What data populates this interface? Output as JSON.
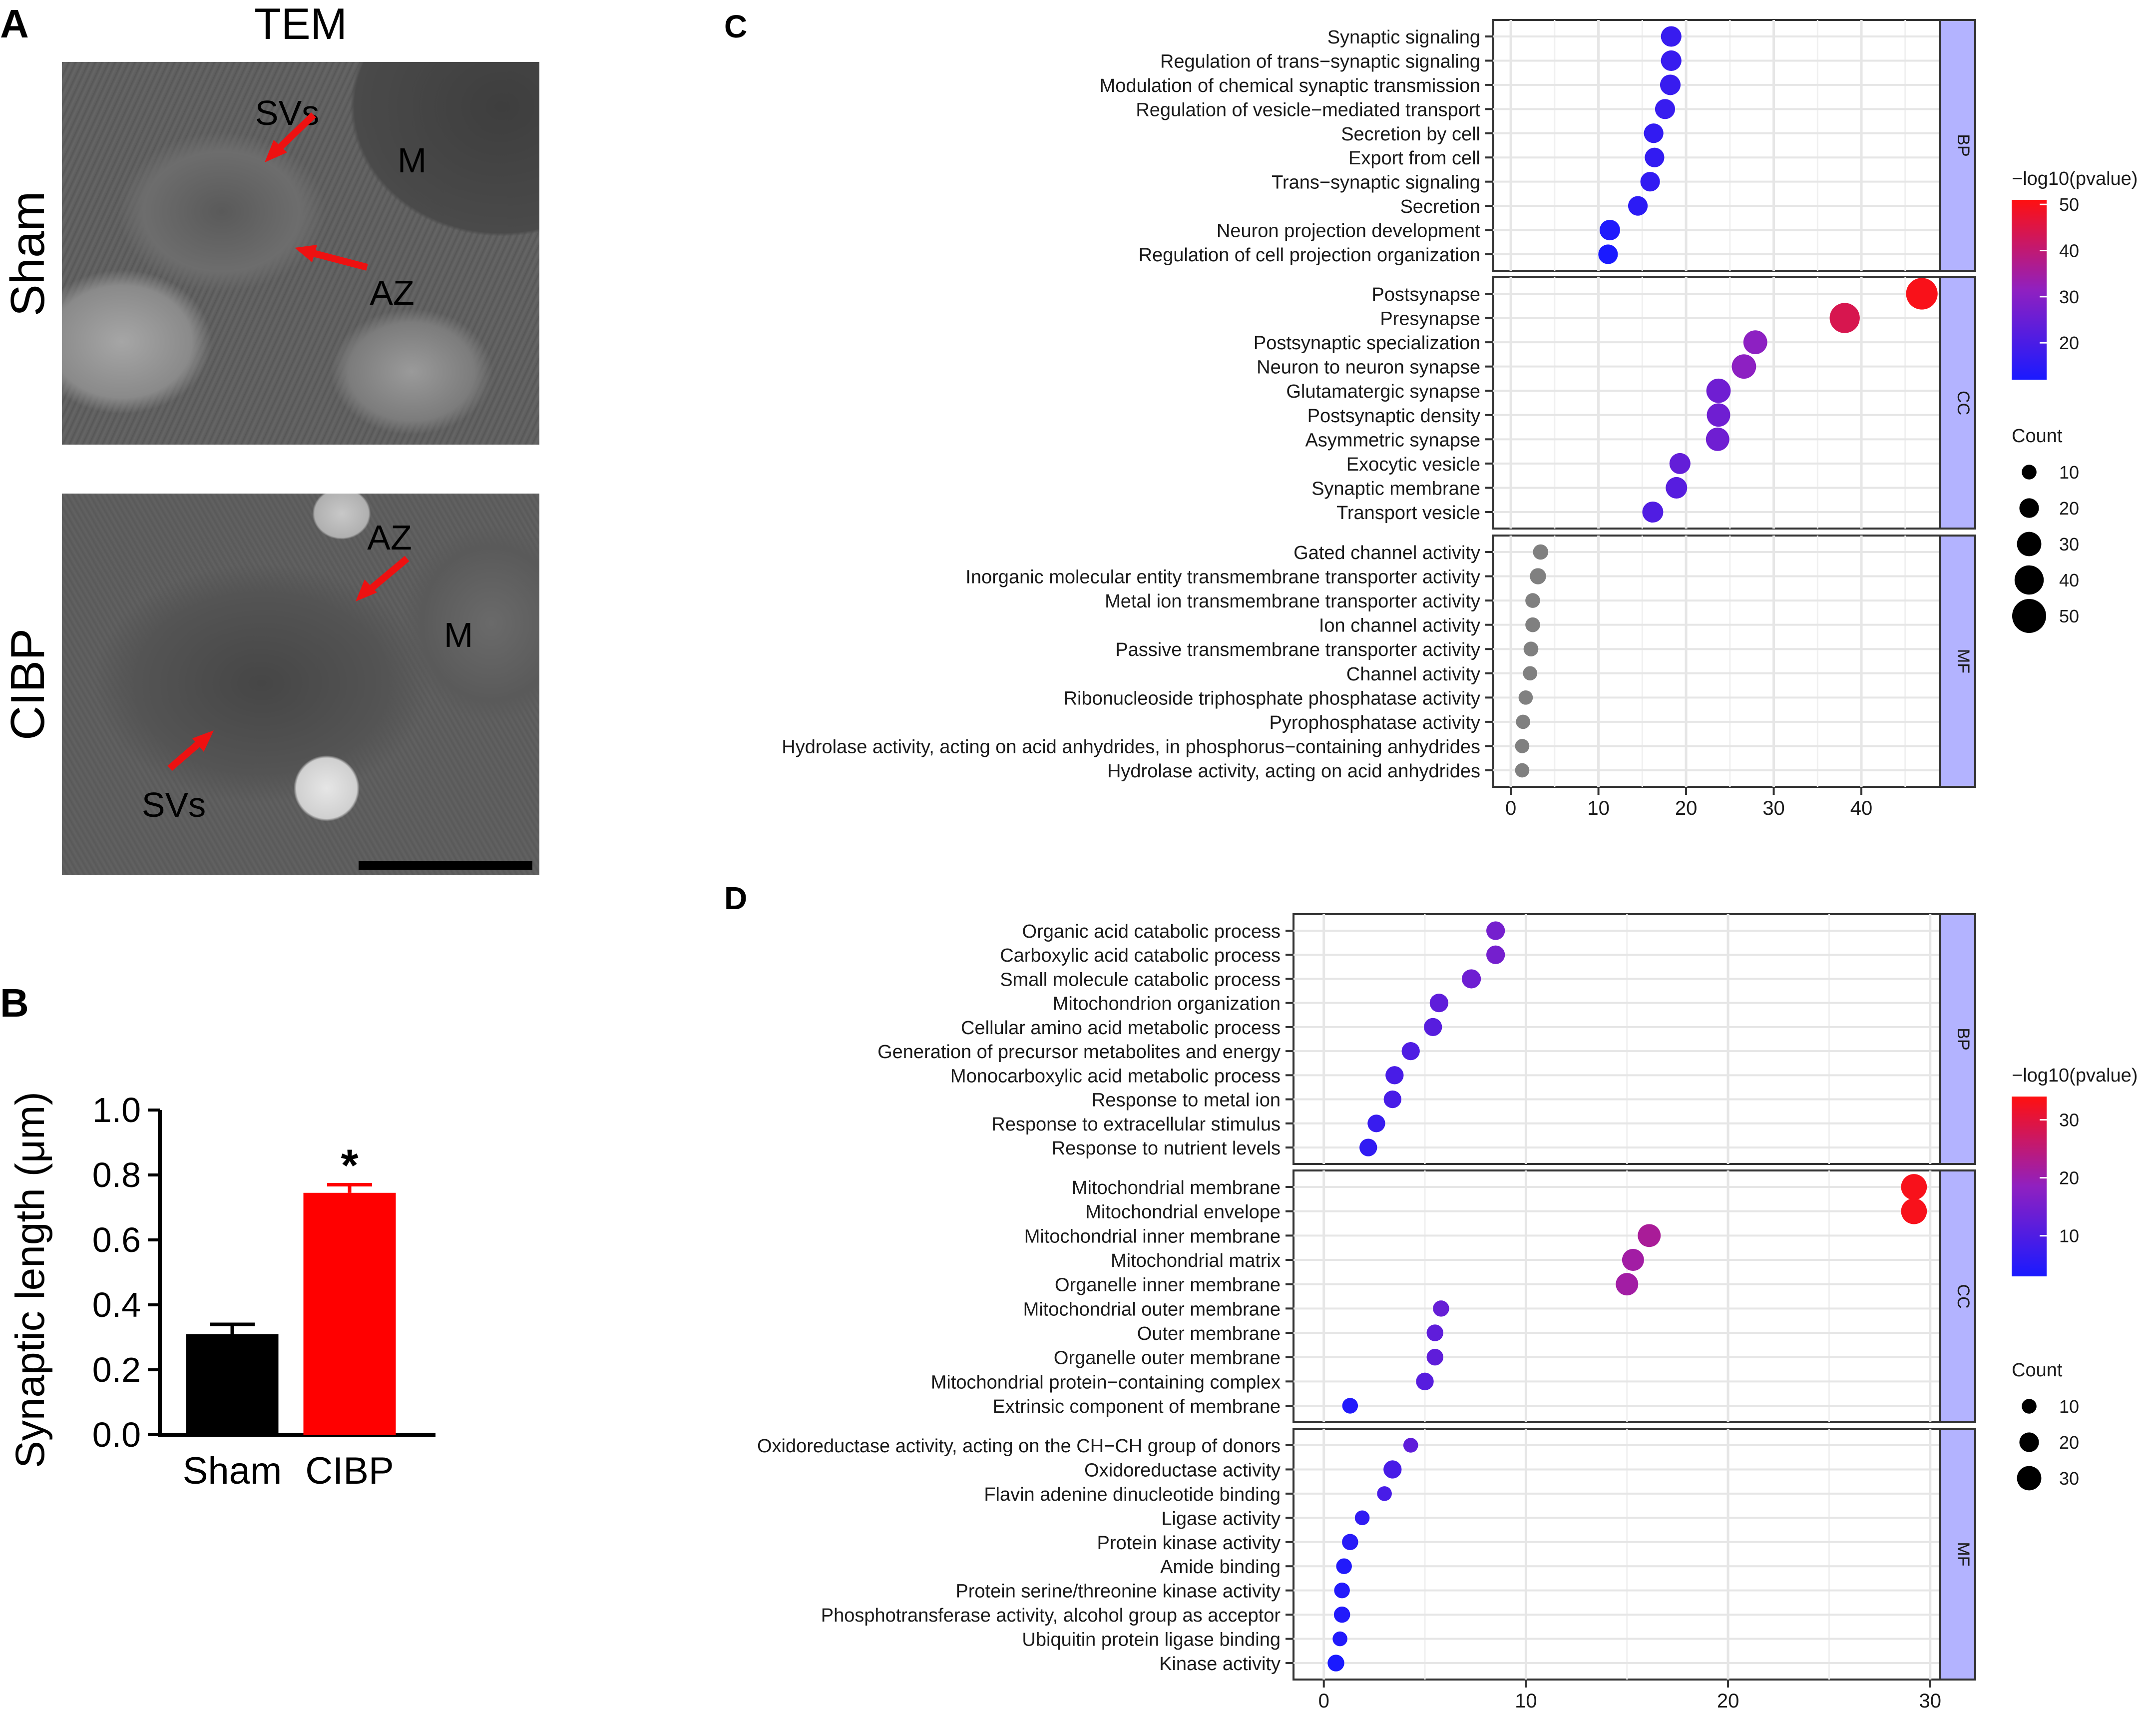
{
  "panel_a": {
    "letter": "A",
    "title": "TEM",
    "rows": [
      {
        "label": "Sham",
        "annotations": {
          "svs": "SVs",
          "az": "AZ",
          "m": "M"
        }
      },
      {
        "label": "CIBP",
        "annotations": {
          "svs": "SVs",
          "az": "AZ",
          "m": "M"
        }
      }
    ],
    "colors": {
      "arrow": "#ee1111",
      "scale_bar": "#000000"
    }
  },
  "panel_b": {
    "letter": "B",
    "significance": "*"
  },
  "panel_c": {
    "letter": "C"
  },
  "panel_d": {
    "letter": "D"
  },
  "chart_data": [
    {
      "id": "synaptic_length",
      "type": "bar",
      "categories": [
        "Sham",
        "CIBP"
      ],
      "values": [
        0.31,
        0.745
      ],
      "errors": [
        0.03,
        0.025
      ],
      "colors": [
        "#000000",
        "#ff0000"
      ],
      "ylabel": "Synaptic length (μm)",
      "ylim": [
        0,
        1.0
      ],
      "yticks": [
        0.0,
        0.2,
        0.4,
        0.6,
        0.8,
        1.0
      ],
      "ytick_labels": [
        "0.0",
        "0.2",
        "0.4",
        "0.6",
        "0.8",
        "1.0"
      ],
      "annotation": "*"
    },
    {
      "id": "go_c",
      "type": "scatter",
      "xlim": [
        -2,
        49
      ],
      "xticks": [
        0,
        10,
        20,
        30,
        40
      ],
      "color_legend": {
        "title": "−log10(pvalue)",
        "min": 12,
        "max": 51,
        "ticks": [
          20,
          30,
          40,
          50
        ]
      },
      "size_legend": {
        "title": "Count",
        "ticks": [
          10,
          20,
          30,
          40,
          50
        ]
      },
      "facets": [
        {
          "name": "BP",
          "terms": [
            {
              "label": "Synaptic signaling",
              "x": 18.3,
              "p": 17,
              "count": 22
            },
            {
              "label": "Regulation of trans−synaptic signaling",
              "x": 18.3,
              "p": 17,
              "count": 22
            },
            {
              "label": "Modulation of chemical synaptic transmission",
              "x": 18.2,
              "p": 17,
              "count": 22
            },
            {
              "label": "Regulation of vesicle−mediated transport",
              "x": 17.6,
              "p": 17,
              "count": 21
            },
            {
              "label": "Secretion by cell",
              "x": 16.3,
              "p": 16,
              "count": 20
            },
            {
              "label": "Export from cell",
              "x": 16.4,
              "p": 16,
              "count": 20
            },
            {
              "label": "Trans−synaptic signaling",
              "x": 15.9,
              "p": 16,
              "count": 20
            },
            {
              "label": "Secretion",
              "x": 14.5,
              "p": 15,
              "count": 20
            },
            {
              "label": "Neuron projection development",
              "x": 11.3,
              "p": 13,
              "count": 22
            },
            {
              "label": "Regulation of cell projection organization",
              "x": 11.1,
              "p": 12,
              "count": 20
            }
          ]
        },
        {
          "name": "CC",
          "terms": [
            {
              "label": "Postsynapse",
              "x": 46.9,
              "p": 50,
              "count": 45
            },
            {
              "label": "Presynapse",
              "x": 38.1,
              "p": 44,
              "count": 42
            },
            {
              "label": "Postsynaptic specialization",
              "x": 27.9,
              "p": 31,
              "count": 29
            },
            {
              "label": "Neuron to neuron synapse",
              "x": 26.6,
              "p": 31,
              "count": 30
            },
            {
              "label": "Glutamatergic synapse",
              "x": 23.7,
              "p": 26,
              "count": 30
            },
            {
              "label": "Postsynaptic density",
              "x": 23.7,
              "p": 26,
              "count": 28
            },
            {
              "label": "Asymmetric synapse",
              "x": 23.6,
              "p": 26,
              "count": 28
            },
            {
              "label": "Exocytic vesicle",
              "x": 19.3,
              "p": 24,
              "count": 23
            },
            {
              "label": "Synaptic membrane",
              "x": 18.9,
              "p": 22,
              "count": 24
            },
            {
              "label": "Transport vesicle",
              "x": 16.2,
              "p": 21,
              "count": 23
            }
          ]
        },
        {
          "name": "MF",
          "terms": [
            {
              "label": "Gated channel activity",
              "x": 3.4,
              "p": null,
              "count": 11
            },
            {
              "label": "Inorganic molecular entity transmembrane transporter activity",
              "x": 3.1,
              "p": null,
              "count": 13
            },
            {
              "label": "Metal ion transmembrane transporter activity",
              "x": 2.5,
              "p": null,
              "count": 10
            },
            {
              "label": "Ion channel activity",
              "x": 2.5,
              "p": null,
              "count": 10
            },
            {
              "label": "Passive transmembrane transporter activity",
              "x": 2.3,
              "p": null,
              "count": 10
            },
            {
              "label": "Channel activity",
              "x": 2.2,
              "p": null,
              "count": 9
            },
            {
              "label": "Ribonucleoside triphosphate phosphatase activity",
              "x": 1.7,
              "p": null,
              "count": 9
            },
            {
              "label": "Pyrophosphatase activity",
              "x": 1.4,
              "p": null,
              "count": 9
            },
            {
              "label": "Hydrolase activity, acting on acid anhydrides, in phosphorus−containing anhydrides",
              "x": 1.3,
              "p": null,
              "count": 9
            },
            {
              "label": "Hydrolase activity, acting on acid anhydrides",
              "x": 1.3,
              "p": null,
              "count": 9
            }
          ]
        }
      ]
    },
    {
      "id": "go_d",
      "type": "scatter",
      "xlim": [
        -1.5,
        30.5
      ],
      "xticks": [
        0,
        10,
        20,
        30
      ],
      "color_legend": {
        "title": "−log10(pvalue)",
        "min": 3,
        "max": 34,
        "ticks": [
          10,
          20,
          30
        ]
      },
      "size_legend": {
        "title": "Count",
        "ticks": [
          10,
          20,
          30
        ]
      },
      "facets": [
        {
          "name": "BP",
          "terms": [
            {
              "label": "Organic acid catabolic process",
              "x": 8.5,
              "p": 15,
              "count": 18
            },
            {
              "label": "Carboxylic acid catabolic process",
              "x": 8.5,
              "p": 15,
              "count": 18
            },
            {
              "label": "Small molecule catabolic process",
              "x": 7.3,
              "p": 14,
              "count": 19
            },
            {
              "label": "Mitochondrion organization",
              "x": 5.7,
              "p": 12,
              "count": 18
            },
            {
              "label": "Cellular amino acid metabolic process",
              "x": 5.4,
              "p": 11,
              "count": 17
            },
            {
              "label": "Generation of precursor metabolites and energy",
              "x": 4.3,
              "p": 10,
              "count": 17
            },
            {
              "label": "Monocarboxylic acid metabolic process",
              "x": 3.5,
              "p": 9,
              "count": 17
            },
            {
              "label": "Response to metal ion",
              "x": 3.4,
              "p": 9,
              "count": 16
            },
            {
              "label": "Response to extracellular stimulus",
              "x": 2.6,
              "p": 7,
              "count": 16
            },
            {
              "label": "Response to nutrient levels",
              "x": 2.2,
              "p": 6,
              "count": 16
            }
          ]
        },
        {
          "name": "CC",
          "terms": [
            {
              "label": "Mitochondrial membrane",
              "x": 29.2,
              "p": 33,
              "count": 33
            },
            {
              "label": "Mitochondrial envelope",
              "x": 29.2,
              "p": 33,
              "count": 33
            },
            {
              "label": "Mitochondrial inner membrane",
              "x": 16.1,
              "p": 22,
              "count": 27
            },
            {
              "label": "Mitochondrial matrix",
              "x": 15.3,
              "p": 21,
              "count": 25
            },
            {
              "label": "Organelle inner membrane",
              "x": 15.0,
              "p": 21,
              "count": 26
            },
            {
              "label": "Mitochondrial outer membrane",
              "x": 5.8,
              "p": 13,
              "count": 13
            },
            {
              "label": "Outer membrane",
              "x": 5.5,
              "p": 12,
              "count": 14
            },
            {
              "label": "Organelle outer membrane",
              "x": 5.5,
              "p": 12,
              "count": 14
            },
            {
              "label": "Mitochondrial protein−containing complex",
              "x": 5.0,
              "p": 11,
              "count": 16
            },
            {
              "label": "Extrinsic component of membrane",
              "x": 1.3,
              "p": 4,
              "count": 12
            }
          ]
        },
        {
          "name": "MF",
          "terms": [
            {
              "label": "Oxidoreductase activity, acting on the CH−CH group of donors",
              "x": 4.3,
              "p": 12,
              "count": 10
            },
            {
              "label": "Oxidoreductase activity",
              "x": 3.4,
              "p": 9,
              "count": 17
            },
            {
              "label": "Flavin adenine dinucleotide binding",
              "x": 3.0,
              "p": 9,
              "count": 10
            },
            {
              "label": "Ligase activity",
              "x": 1.9,
              "p": 6,
              "count": 10
            },
            {
              "label": "Protein kinase activity",
              "x": 1.3,
              "p": 5,
              "count": 13
            },
            {
              "label": "Amide binding",
              "x": 1.0,
              "p": 4,
              "count": 12
            },
            {
              "label": "Protein serine/threonine kinase activity",
              "x": 0.9,
              "p": 4,
              "count": 12
            },
            {
              "label": "Phosphotransferase activity, alcohol group as acceptor",
              "x": 0.9,
              "p": 4,
              "count": 13
            },
            {
              "label": "Ubiquitin protein ligase binding",
              "x": 0.8,
              "p": 4,
              "count": 10
            },
            {
              "label": "Kinase activity",
              "x": 0.6,
              "p": 3,
              "count": 14
            }
          ]
        }
      ]
    }
  ]
}
